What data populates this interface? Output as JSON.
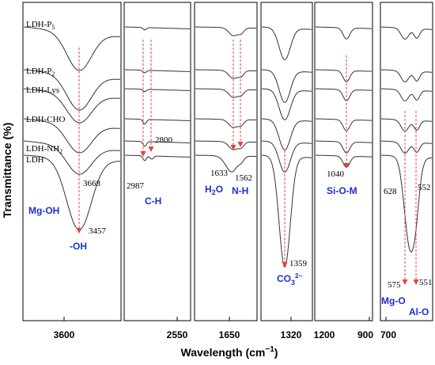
{
  "chart_data": {
    "type": "line",
    "xlabel": "Wavelength (cm⁻¹)",
    "ylabel": "Transmittance (%)",
    "series": [
      {
        "name": "LDH-P5"
      },
      {
        "name": "LDH-P2"
      },
      {
        "name": "LDH-Lys"
      },
      {
        "name": "LDH-CHO"
      },
      {
        "name": "LDH-NH2"
      },
      {
        "name": "LDH"
      }
    ],
    "panels": [
      {
        "id": "p1",
        "x_ticks": [
          "3600"
        ]
      },
      {
        "id": "p2",
        "x_ticks": [
          "2550"
        ]
      },
      {
        "id": "p3",
        "x_ticks": [
          "1650"
        ]
      },
      {
        "id": "p4",
        "x_ticks": [
          "1320"
        ]
      },
      {
        "id": "p5",
        "x_ticks": [
          "1200",
          "900"
        ]
      },
      {
        "id": "p6",
        "x_ticks": [
          "700"
        ]
      }
    ],
    "peak_labels": [
      "3668",
      "3457",
      "2987",
      "2800",
      "1633",
      "1562",
      "1359",
      "1040",
      "628",
      "552",
      "575",
      "551"
    ],
    "group_labels": [
      "Mg-OH",
      "-OH",
      "C-H",
      "H2O",
      "N-H",
      "CO3 2−",
      "Si-O-M",
      "Mg-O",
      "Al-O"
    ],
    "colors": {
      "curve": "#333333",
      "arrow": "#e8413a",
      "label_blue": "#1a2fd6"
    }
  },
  "series_labels": {
    "p5": {
      "base": "LDH-P",
      "sub": "5"
    },
    "p2": {
      "base": "LDH-P",
      "sub": "2"
    },
    "lys": "LDH-Lys",
    "cho": "LDH-CHO",
    "nh2": {
      "base": "LDH-NH",
      "sub": "2"
    },
    "ldh": "LDH"
  },
  "peaks": {
    "oh1": "3668",
    "oh2": "3457",
    "ch1": "2987",
    "ch2": "2800",
    "h2o": "1633",
    "nh": "1562",
    "co3": "1359",
    "si": "1040",
    "mg1": "628",
    "al1": "552",
    "mg2": "575",
    "al2": "551"
  },
  "groups": {
    "mgoh": "Mg-OH",
    "oh": "-OH",
    "ch": "C-H",
    "h2o": {
      "base": "H",
      "sub": "2",
      "tail": "O"
    },
    "nh": "N-H",
    "co3": {
      "base": "CO",
      "sub": "3",
      "sup": "2−"
    },
    "sio": "Si-O-M",
    "mgo": "Mg-O",
    "alo": "Al-O"
  },
  "ticks": {
    "t3600": "3600",
    "t2550": "2550",
    "t1650": "1650",
    "t1320": "1320",
    "t1200": "1200",
    "t900": "900",
    "t700": "700"
  },
  "axis": {
    "ylabel": "Transmittance (%)",
    "xlabel_base": "Wavelength (cm",
    "xlabel_sup": "−1",
    "xlabel_close": ")"
  }
}
